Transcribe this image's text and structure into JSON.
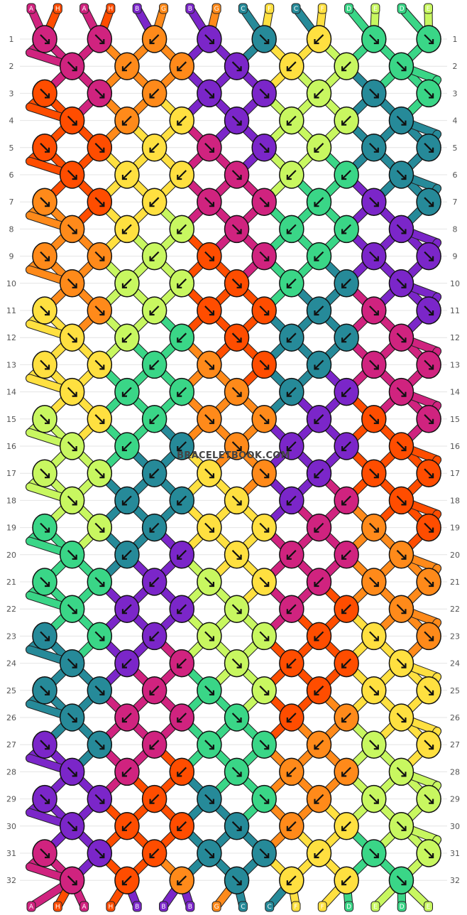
{
  "watermark": "BRACELETBOOK.COM",
  "colors": {
    "A": "#d0237f",
    "H": "#ff4d00",
    "B": "#7b26c9",
    "G": "#ff8a1a",
    "C": "#268a99",
    "F": "#ffe040",
    "D": "#3ad687",
    "E": "#c8f760"
  },
  "strands_top": [
    "A",
    "H",
    "A",
    "H",
    "B",
    "G",
    "B",
    "G",
    "C",
    "F",
    "C",
    "F",
    "D",
    "E",
    "D",
    "E"
  ],
  "strands_bottom": [
    "A",
    "H",
    "A",
    "H",
    "B",
    "B",
    "B",
    "G",
    "C",
    "C",
    "F",
    "F",
    "D",
    "E",
    "D",
    "E"
  ],
  "rows": [
    "1",
    "2",
    "3",
    "4",
    "5",
    "6",
    "7",
    "8",
    "9",
    "10",
    "11",
    "12",
    "13",
    "14",
    "15",
    "16",
    "17",
    "18",
    "19",
    "20",
    "21",
    "22",
    "23",
    "24",
    "25",
    "26",
    "27",
    "28",
    "29",
    "30",
    "31",
    "32"
  ],
  "knots": [
    [
      "A",
      "A",
      "G",
      "B",
      "C",
      "F",
      "D",
      "D"
    ],
    [
      "A",
      "G",
      "G",
      "B",
      "F",
      "E",
      "D"
    ],
    [
      "H",
      "A",
      "G",
      "B",
      "B",
      "E",
      "C",
      "D"
    ],
    [
      "H",
      "G",
      "F",
      "B",
      "E",
      "E",
      "C"
    ],
    [
      "H",
      "H",
      "F",
      "A",
      "B",
      "E",
      "C",
      "C"
    ],
    [
      "H",
      "F",
      "F",
      "A",
      "E",
      "D",
      "C"
    ],
    [
      "G",
      "H",
      "F",
      "A",
      "A",
      "D",
      "B",
      "C"
    ],
    [
      "G",
      "F",
      "E",
      "A",
      "D",
      "D",
      "B"
    ],
    [
      "G",
      "G",
      "E",
      "H",
      "A",
      "D",
      "B",
      "B"
    ],
    [
      "G",
      "E",
      "E",
      "H",
      "D",
      "C",
      "B"
    ],
    [
      "F",
      "G",
      "E",
      "H",
      "H",
      "C",
      "A",
      "B"
    ],
    [
      "F",
      "E",
      "D",
      "H",
      "C",
      "C",
      "A"
    ],
    [
      "F",
      "F",
      "D",
      "G",
      "H",
      "C",
      "A",
      "A"
    ],
    [
      "F",
      "D",
      "D",
      "G",
      "C",
      "B",
      "A"
    ],
    [
      "E",
      "F",
      "D",
      "G",
      "G",
      "B",
      "H",
      "A"
    ],
    [
      "E",
      "D",
      "C",
      "G",
      "B",
      "B",
      "H"
    ],
    [
      "E",
      "E",
      "C",
      "F",
      "G",
      "B",
      "H",
      "H"
    ],
    [
      "E",
      "C",
      "C",
      "F",
      "B",
      "A",
      "H"
    ],
    [
      "D",
      "E",
      "C",
      "F",
      "F",
      "A",
      "G",
      "H"
    ],
    [
      "D",
      "C",
      "B",
      "F",
      "A",
      "A",
      "G"
    ],
    [
      "D",
      "D",
      "B",
      "E",
      "F",
      "A",
      "G",
      "G"
    ],
    [
      "D",
      "B",
      "B",
      "E",
      "A",
      "H",
      "G"
    ],
    [
      "C",
      "D",
      "B",
      "E",
      "E",
      "H",
      "F",
      "G"
    ],
    [
      "C",
      "B",
      "A",
      "E",
      "H",
      "H",
      "F"
    ],
    [
      "C",
      "C",
      "A",
      "D",
      "E",
      "H",
      "F",
      "F"
    ],
    [
      "C",
      "A",
      "A",
      "D",
      "H",
      "G",
      "F"
    ],
    [
      "B",
      "C",
      "A",
      "D",
      "D",
      "G",
      "E",
      "F"
    ],
    [
      "B",
      "A",
      "H",
      "D",
      "G",
      "G",
      "E"
    ],
    [
      "B",
      "B",
      "H",
      "C",
      "D",
      "G",
      "E",
      "E"
    ],
    [
      "B",
      "H",
      "H",
      "C",
      "G",
      "F",
      "E"
    ],
    [
      "A",
      "B",
      "H",
      "C",
      "C",
      "F",
      "D",
      "E"
    ],
    [
      "A",
      "H",
      "G",
      "C",
      "F",
      "F",
      "D"
    ]
  ],
  "knot_arrows": [
    [
      "se",
      "se",
      "sw",
      "se",
      "se",
      "sw",
      "se",
      "se"
    ],
    [
      "se",
      "sw",
      "sw",
      "se",
      "sw",
      "sw",
      "se"
    ],
    [
      "se",
      "se",
      "sw",
      "se",
      "se",
      "sw",
      "se",
      "se"
    ],
    [
      "se",
      "sw",
      "sw",
      "se",
      "sw",
      "sw",
      "se"
    ],
    [
      "se",
      "se",
      "sw",
      "se",
      "se",
      "sw",
      "se",
      "se"
    ],
    [
      "se",
      "sw",
      "sw",
      "se",
      "sw",
      "sw",
      "se"
    ],
    [
      "se",
      "se",
      "sw",
      "se",
      "se",
      "sw",
      "se",
      "se"
    ],
    [
      "se",
      "sw",
      "sw",
      "se",
      "sw",
      "sw",
      "se"
    ],
    [
      "se",
      "se",
      "sw",
      "se",
      "se",
      "sw",
      "se",
      "se"
    ],
    [
      "se",
      "sw",
      "sw",
      "se",
      "sw",
      "sw",
      "se"
    ],
    [
      "se",
      "se",
      "sw",
      "se",
      "se",
      "sw",
      "se",
      "se"
    ],
    [
      "se",
      "sw",
      "sw",
      "se",
      "sw",
      "sw",
      "se"
    ],
    [
      "se",
      "se",
      "sw",
      "se",
      "se",
      "sw",
      "se",
      "se"
    ],
    [
      "se",
      "sw",
      "sw",
      "se",
      "sw",
      "sw",
      "se"
    ],
    [
      "se",
      "se",
      "sw",
      "se",
      "se",
      "sw",
      "se",
      "se"
    ],
    [
      "se",
      "sw",
      "sw",
      "se",
      "sw",
      "sw",
      "se"
    ],
    [
      "se",
      "se",
      "sw",
      "se",
      "se",
      "sw",
      "se",
      "se"
    ],
    [
      "se",
      "sw",
      "sw",
      "se",
      "sw",
      "sw",
      "se"
    ],
    [
      "se",
      "se",
      "sw",
      "se",
      "se",
      "sw",
      "se",
      "se"
    ],
    [
      "se",
      "sw",
      "sw",
      "se",
      "sw",
      "sw",
      "se"
    ],
    [
      "se",
      "se",
      "sw",
      "se",
      "se",
      "sw",
      "se",
      "se"
    ],
    [
      "se",
      "sw",
      "sw",
      "se",
      "sw",
      "sw",
      "se"
    ],
    [
      "se",
      "se",
      "sw",
      "se",
      "se",
      "sw",
      "se",
      "se"
    ],
    [
      "se",
      "sw",
      "sw",
      "se",
      "sw",
      "sw",
      "se"
    ],
    [
      "se",
      "se",
      "sw",
      "se",
      "se",
      "sw",
      "se",
      "se"
    ],
    [
      "se",
      "sw",
      "sw",
      "se",
      "sw",
      "sw",
      "se"
    ],
    [
      "se",
      "se",
      "sw",
      "se",
      "se",
      "sw",
      "se",
      "se"
    ],
    [
      "se",
      "sw",
      "sw",
      "se",
      "sw",
      "sw",
      "se"
    ],
    [
      "se",
      "se",
      "sw",
      "se",
      "se",
      "sw",
      "se",
      "se"
    ],
    [
      "se",
      "sw",
      "sw",
      "se",
      "sw",
      "sw",
      "se"
    ],
    [
      "se",
      "se",
      "sw",
      "se",
      "se",
      "sw",
      "se",
      "se"
    ],
    [
      "se",
      "sw",
      "sw",
      "se",
      "sw",
      "sw",
      "se"
    ]
  ]
}
